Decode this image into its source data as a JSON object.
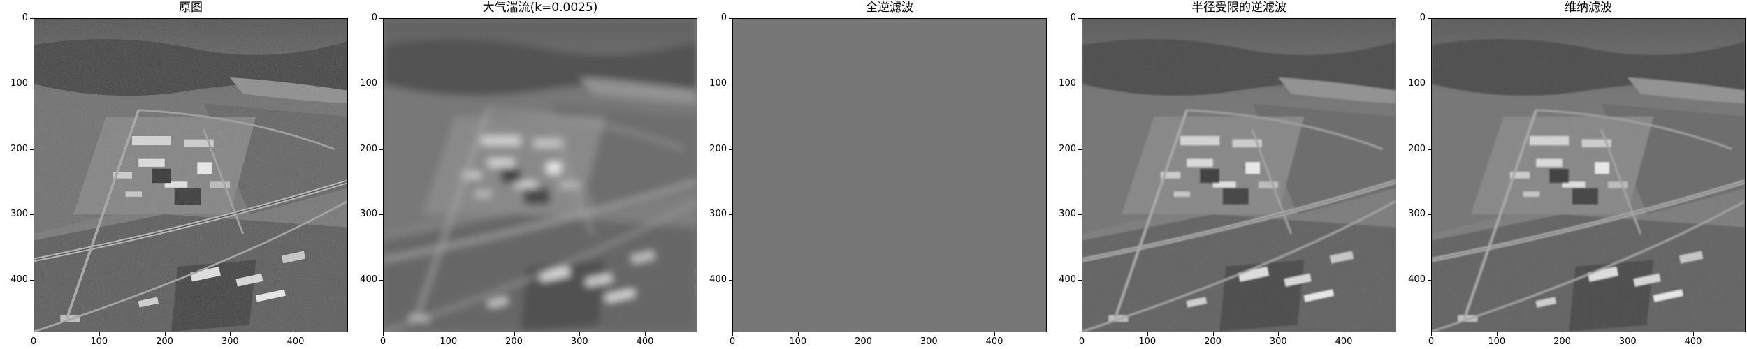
{
  "panels": [
    {
      "title": "原图",
      "image": "original aerial photo",
      "blur": 0,
      "flat": false
    },
    {
      "title": "大气湍流(k=0.0025)",
      "image": "turbulence-blurred aerial photo",
      "blur": 6,
      "flat": false
    },
    {
      "title": "全逆滤波",
      "image": "uniform gray result",
      "blur": 0,
      "flat": true
    },
    {
      "title": "半径受限的逆滤波",
      "image": "restored aerial photo",
      "blur": 1.2,
      "flat": false
    },
    {
      "title": "维纳滤波",
      "image": "restored aerial photo",
      "blur": 1.0,
      "flat": false
    }
  ],
  "axis": {
    "x_ticks": [
      "0",
      "100",
      "200",
      "300",
      "400"
    ],
    "y_ticks": [
      "0",
      "100",
      "200",
      "300",
      "400"
    ],
    "x_values": [
      0,
      100,
      200,
      300,
      400
    ],
    "y_values": [
      0,
      100,
      200,
      300,
      400
    ],
    "range": [
      0,
      480
    ]
  },
  "colors": {
    "flat_gray": "#777777",
    "frame": "#000000"
  }
}
